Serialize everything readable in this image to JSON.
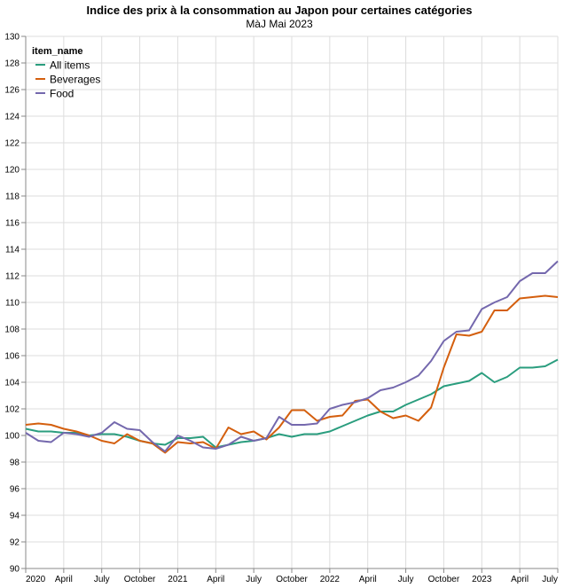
{
  "chart_data": {
    "type": "line",
    "title": "Indice des prix à la consommation au Japon pour certaines catégories",
    "subtitle": "MàJ Mai 2023",
    "xlabel": "",
    "ylabel": "",
    "ylim": [
      90,
      130
    ],
    "yticks": [
      90,
      92,
      94,
      96,
      98,
      100,
      102,
      104,
      106,
      108,
      110,
      112,
      114,
      116,
      118,
      120,
      122,
      124,
      126,
      128,
      130
    ],
    "x_start": "2020-01",
    "x_end": "2023-07",
    "xticks": [
      {
        "month": 0,
        "label": "2020"
      },
      {
        "month": 3,
        "label": "April"
      },
      {
        "month": 6,
        "label": "July"
      },
      {
        "month": 9,
        "label": "October"
      },
      {
        "month": 12,
        "label": "2021"
      },
      {
        "month": 15,
        "label": "April"
      },
      {
        "month": 18,
        "label": "July"
      },
      {
        "month": 21,
        "label": "October"
      },
      {
        "month": 24,
        "label": "2022"
      },
      {
        "month": 27,
        "label": "April"
      },
      {
        "month": 30,
        "label": "July"
      },
      {
        "month": 33,
        "label": "October"
      },
      {
        "month": 36,
        "label": "2023"
      },
      {
        "month": 39,
        "label": "April"
      },
      {
        "month": 42,
        "label": "July"
      }
    ],
    "grid": true,
    "legend": {
      "title": "item_name",
      "placement": "top-left"
    },
    "series": [
      {
        "name": "All items",
        "color": "#2a9d7e",
        "values": [
          100.5,
          100.3,
          100.3,
          100.2,
          100.2,
          100.0,
          100.1,
          100.1,
          99.9,
          99.6,
          99.4,
          99.3,
          99.8,
          99.8,
          99.9,
          99.1,
          99.3,
          99.5,
          99.6,
          99.8,
          100.1,
          99.9,
          100.1,
          100.1,
          100.3,
          100.7,
          101.1,
          101.5,
          101.8,
          101.8,
          102.3,
          102.7,
          103.1,
          103.7,
          103.9,
          104.1,
          104.7,
          104.0,
          104.4,
          105.1,
          105.1,
          105.2,
          105.7
        ]
      },
      {
        "name": "Beverages",
        "color": "#d45f0e",
        "values": [
          100.8,
          100.9,
          100.8,
          100.5,
          100.3,
          100.0,
          99.6,
          99.4,
          100.1,
          99.6,
          99.4,
          98.7,
          99.5,
          99.4,
          99.5,
          99.0,
          100.6,
          100.1,
          100.3,
          99.7,
          100.6,
          101.9,
          101.9,
          101.1,
          101.4,
          101.5,
          102.6,
          102.7,
          101.8,
          101.3,
          101.5,
          101.1,
          102.1,
          105.1,
          107.6,
          107.5,
          107.8,
          109.4,
          109.4,
          110.3,
          110.4,
          110.5,
          110.4
        ]
      },
      {
        "name": "Food",
        "color": "#7468ad",
        "values": [
          100.2,
          99.6,
          99.5,
          100.2,
          100.1,
          99.9,
          100.2,
          101.0,
          100.5,
          100.4,
          99.5,
          98.8,
          100.0,
          99.6,
          99.1,
          99.0,
          99.3,
          99.9,
          99.6,
          99.8,
          101.4,
          100.8,
          100.8,
          100.9,
          102.0,
          102.3,
          102.5,
          102.8,
          103.4,
          103.6,
          104.0,
          104.5,
          105.6,
          107.1,
          107.8,
          107.9,
          109.5,
          110.0,
          110.4,
          111.6,
          112.2,
          112.2,
          113.1
        ]
      }
    ]
  }
}
